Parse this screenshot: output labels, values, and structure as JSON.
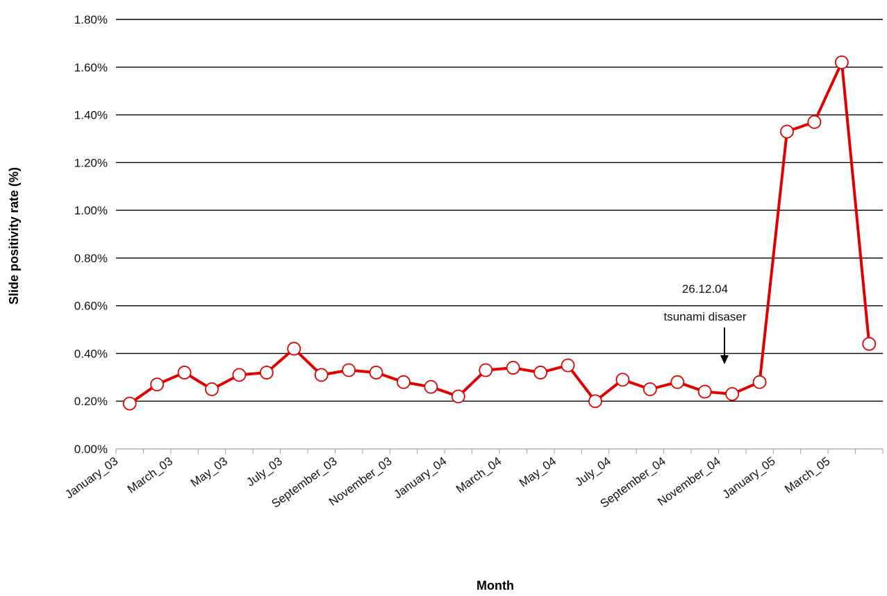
{
  "chart_data": {
    "type": "line",
    "xlabel": "Month",
    "ylabel": "Slide positivity rate (%)",
    "ylim": [
      0,
      0.018
    ],
    "yticks": [
      "0.00%",
      "0.20%",
      "0.40%",
      "0.60%",
      "0.80%",
      "1.00%",
      "1.20%",
      "1.40%",
      "1.60%",
      "1.80%"
    ],
    "grid": "horizontal",
    "x": [
      "January_03",
      "February_03",
      "March_03",
      "April_03",
      "May_03",
      "June_03",
      "July_03",
      "August_03",
      "September_03",
      "October_03",
      "November_03",
      "December_03",
      "January_04",
      "February_04",
      "March_04",
      "April_04",
      "May_04",
      "June_04",
      "July_04",
      "August_04",
      "September_04",
      "October_04",
      "November_04",
      "December_04",
      "January_05",
      "February_05",
      "March_05",
      "April_05"
    ],
    "xtick_labels": [
      "January_03",
      "March_03",
      "May_03",
      "July_03",
      "September_03",
      "November_03",
      "January_04",
      "March_04",
      "May_04",
      "July_04",
      "September_04",
      "November_04",
      "January_05",
      "March_05"
    ],
    "series": [
      {
        "color": "#e00000",
        "values": [
          0.0019,
          0.0027,
          0.0032,
          0.0025,
          0.0031,
          0.0032,
          0.0042,
          0.0031,
          0.0033,
          0.0032,
          0.0028,
          0.0026,
          0.0022,
          0.0033,
          0.0034,
          0.0032,
          0.0035,
          0.002,
          0.0029,
          0.0025,
          0.0028,
          0.0024,
          0.0023,
          0.0028,
          0.0133,
          0.0137,
          0.0162,
          0.0044
        ]
      }
    ],
    "annotations": [
      {
        "text_line1": "26.12.04",
        "text_line2": "tsunami disaser"
      }
    ]
  }
}
